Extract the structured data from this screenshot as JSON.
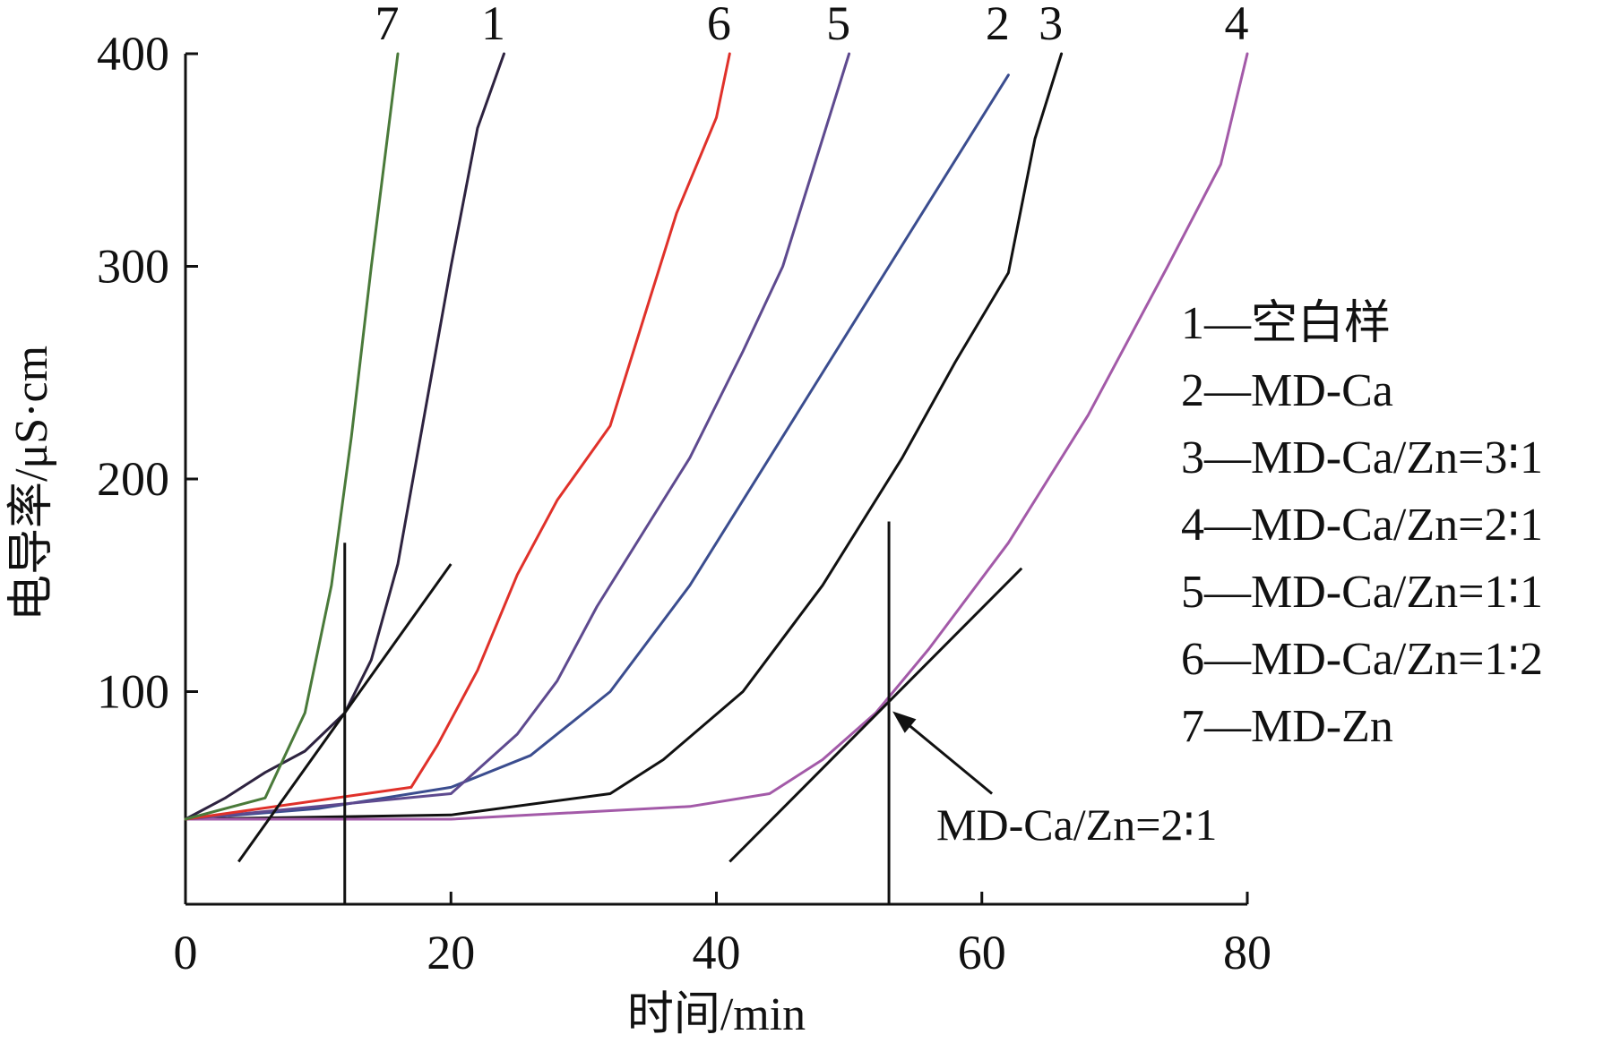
{
  "chart_data": {
    "type": "line",
    "xlabel": "时间/min",
    "ylabel": "电导率/μS·cm",
    "xlim": [
      0,
      80
    ],
    "ylim": [
      0,
      400
    ],
    "x_ticks": [
      "0",
      "20",
      "40",
      "60",
      "80"
    ],
    "y_ticks": [
      "100",
      "200",
      "300",
      "400"
    ],
    "series": [
      {
        "name": "1",
        "color": "#2e2340",
        "x": [
          0,
          3,
          6,
          9,
          12,
          14,
          16,
          18,
          20,
          22,
          24
        ],
        "y": [
          40,
          50,
          62,
          72,
          90,
          115,
          160,
          230,
          300,
          365,
          400
        ]
      },
      {
        "name": "2",
        "color": "#3b4d8f",
        "x": [
          0,
          10,
          20,
          26,
          32,
          38,
          44,
          50,
          56,
          62
        ],
        "y": [
          40,
          45,
          55,
          70,
          100,
          150,
          210,
          270,
          330,
          390
        ]
      },
      {
        "name": "3",
        "color": "#111111",
        "x": [
          0,
          20,
          32,
          36,
          42,
          48,
          54,
          58,
          62,
          64,
          66
        ],
        "y": [
          40,
          42,
          52,
          68,
          100,
          150,
          210,
          255,
          297,
          360,
          400
        ]
      },
      {
        "name": "4",
        "color": "#a35aa8",
        "x": [
          0,
          20,
          38,
          44,
          48,
          52,
          56,
          62,
          68,
          74,
          78,
          80
        ],
        "y": [
          40,
          40,
          46,
          52,
          68,
          90,
          120,
          170,
          230,
          300,
          348,
          400
        ]
      },
      {
        "name": "5",
        "color": "#5e4a8f",
        "x": [
          0,
          20,
          25,
          28,
          31,
          35,
          38,
          42,
          45,
          48,
          50
        ],
        "y": [
          40,
          52,
          80,
          105,
          140,
          180,
          210,
          260,
          300,
          360,
          400
        ]
      },
      {
        "name": "6",
        "color": "#e0312a",
        "x": [
          0,
          17,
          19,
          22,
          25,
          28,
          32,
          35,
          37,
          40,
          41
        ],
        "y": [
          40,
          55,
          75,
          110,
          155,
          190,
          225,
          285,
          325,
          370,
          400
        ]
      },
      {
        "name": "7",
        "color": "#4a7a3a",
        "x": [
          0,
          6,
          9,
          11,
          12.5,
          14,
          16
        ],
        "y": [
          40,
          50,
          90,
          150,
          220,
          300,
          400
        ]
      }
    ],
    "tangent_lines": [
      {
        "x": [
          4,
          20
        ],
        "y": [
          20,
          160
        ]
      },
      {
        "x": [
          41,
          63
        ],
        "y": [
          20,
          158
        ]
      }
    ],
    "vertical_lines": [
      {
        "x": 12,
        "y": [
          0,
          170
        ]
      },
      {
        "x": 53,
        "y": [
          0,
          180
        ]
      }
    ],
    "legend": [
      "1—空白样",
      "2—MD-Ca",
      "3—MD-Ca/Zn=3∶1",
      "4—MD-Ca/Zn=2∶1",
      "5—MD-Ca/Zn=1∶1",
      "6—MD-Ca/Zn=1∶2",
      "7—MD-Zn"
    ],
    "legend_position": "right",
    "annotation": {
      "text": "MD-Ca/Zn=2∶1",
      "point_x": 53,
      "point_y": 92
    },
    "grid": false
  }
}
